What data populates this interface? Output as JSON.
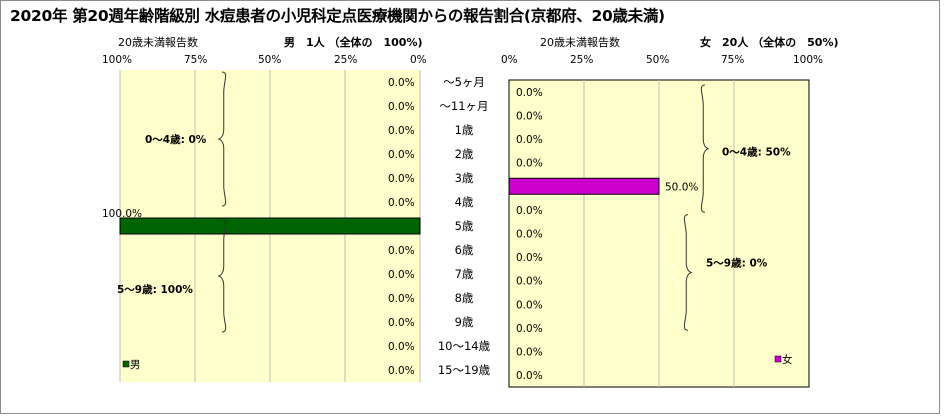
{
  "title": "2020年 第20週年齢階級別 水痘患者の小児科定点医療機関からの報告割合(京都府、20歳未満)",
  "chart_data": [
    {
      "type": "bar",
      "side": "left",
      "subtitle_left": "20歳未満報告数",
      "subtitle_right": "男　1人 （全体の　100%)",
      "xticks": [
        "100%",
        "75%",
        "50%",
        "25%",
        "0%"
      ],
      "xlim": [
        0,
        100
      ],
      "axis_direction": "reversed",
      "legend": "男",
      "legend_position": "bottom-left",
      "series_color": "#006400",
      "categories": [
        "～5ヶ月",
        "～11ヶ月",
        "1歳",
        "2歳",
        "3歳",
        "4歳",
        "5歳",
        "6歳",
        "7歳",
        "8歳",
        "9歳",
        "10～14歳",
        "15～19歳"
      ],
      "values": [
        0,
        0,
        0,
        0,
        0,
        0,
        100,
        0,
        0,
        0,
        0,
        0,
        0
      ],
      "value_labels": [
        "0.0%",
        "0.0%",
        "0.0%",
        "0.0%",
        "0.0%",
        "0.0%",
        "100.0%",
        "0.0%",
        "0.0%",
        "0.0%",
        "0.0%",
        "0.0%",
        "0.0%"
      ],
      "groups": [
        {
          "label": "0～4歳: 0%"
        },
        {
          "label": "5～9歳: 100%"
        }
      ]
    },
    {
      "type": "bar",
      "side": "right",
      "subtitle_left": "20歳未満報告数",
      "subtitle_right": "女　20人 （全体の　50%)",
      "xticks": [
        "0%",
        "25%",
        "50%",
        "75%",
        "100%"
      ],
      "xlim": [
        0,
        100
      ],
      "legend": "女",
      "legend_position": "bottom-right",
      "series_color": "#cc00cc",
      "values": [
        0,
        0,
        0,
        0,
        50,
        0,
        0,
        0,
        0,
        0,
        0,
        0,
        0
      ],
      "value_labels": [
        "0.0%",
        "0.0%",
        "0.0%",
        "0.0%",
        "50.0%",
        "0.0%",
        "0.0%",
        "0.0%",
        "0.0%",
        "0.0%",
        "0.0%",
        "0.0%",
        "0.0%"
      ],
      "groups": [
        {
          "label": "0～4歳: 50%"
        },
        {
          "label": "5～9歳: 0%"
        }
      ]
    }
  ]
}
